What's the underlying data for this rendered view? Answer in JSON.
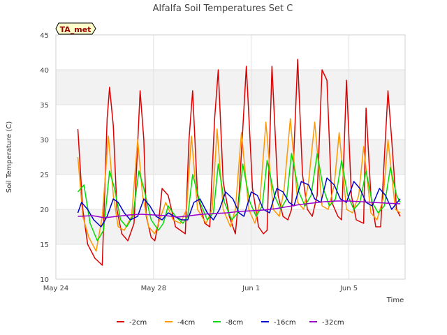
{
  "chart_data": {
    "type": "line",
    "title": "Alfalfa Soil Temperatures Set C",
    "xlabel": "Time",
    "ylabel": "Soil Temperature (C)",
    "ylim": [
      10,
      45
    ],
    "y_ticks": [
      10,
      15,
      20,
      25,
      30,
      35,
      40,
      45
    ],
    "x_ticks": [
      "May 24",
      "May 28",
      "Jun 1",
      "Jun 5"
    ],
    "x_range_days": [
      0,
      14.3
    ],
    "x_tick_days": [
      0,
      4,
      8,
      12
    ],
    "grid": true,
    "legend_position": "bottom",
    "badge": "TA_met",
    "series": [
      {
        "name": "-2cm",
        "color": "#dd0000",
        "x": [
          0.9,
          1.1,
          1.3,
          1.6,
          1.9,
          2.1,
          2.2,
          2.35,
          2.5,
          2.7,
          2.95,
          3.2,
          3.45,
          3.6,
          3.7,
          3.9,
          4.05,
          4.2,
          4.35,
          4.6,
          4.9,
          5.1,
          5.3,
          5.45,
          5.6,
          5.8,
          6.1,
          6.3,
          6.5,
          6.65,
          6.85,
          7.1,
          7.25,
          7.35,
          7.5,
          7.8,
          8.05,
          8.3,
          8.5,
          8.65,
          8.85,
          9.1,
          9.3,
          9.5,
          9.65,
          9.9,
          10.1,
          10.3,
          10.5,
          10.7,
          10.9,
          11.1,
          11.3,
          11.55,
          11.7,
          11.9,
          12.1,
          12.3,
          12.6,
          12.7,
          12.9,
          13.1,
          13.3,
          13.6,
          13.75,
          13.95,
          14.1
        ],
        "y": [
          31.5,
          20,
          15,
          13,
          12,
          33,
          37.5,
          32,
          20,
          16.5,
          15.5,
          18,
          37,
          30,
          19,
          16,
          15.5,
          18,
          23,
          22,
          17.5,
          17,
          16.5,
          30,
          37,
          22,
          18,
          17.5,
          33,
          40,
          24,
          19,
          17.5,
          16.5,
          22,
          40.5,
          23,
          17.5,
          16.5,
          17,
          40.5,
          22,
          19,
          18.5,
          20,
          41.5,
          25,
          20,
          19,
          22,
          40,
          38.5,
          21,
          19,
          18.5,
          38.5,
          22,
          18.5,
          18,
          34.5,
          22,
          17.5,
          17.5,
          37,
          30,
          20,
          19
        ]
      },
      {
        "name": "-4cm",
        "color": "#ff9900",
        "x": [
          0.9,
          1.1,
          1.35,
          1.65,
          1.9,
          2.15,
          2.35,
          2.55,
          2.8,
          3.1,
          3.35,
          3.55,
          3.8,
          4.05,
          4.3,
          4.5,
          4.8,
          5.1,
          5.35,
          5.55,
          5.8,
          6.15,
          6.4,
          6.6,
          6.85,
          7.15,
          7.35,
          7.6,
          7.9,
          8.15,
          8.35,
          8.6,
          8.9,
          9.15,
          9.35,
          9.6,
          9.9,
          10.15,
          10.35,
          10.6,
          10.9,
          11.15,
          11.4,
          11.6,
          11.9,
          12.15,
          12.4,
          12.6,
          12.9,
          13.15,
          13.4,
          13.6,
          13.9,
          14.1
        ],
        "y": [
          27.5,
          19,
          16,
          14,
          19,
          30.5,
          22,
          17.5,
          17,
          19,
          30,
          22,
          17.5,
          16.5,
          19,
          21,
          18.5,
          18,
          20,
          30.5,
          20,
          18,
          20,
          31.5,
          20,
          17.5,
          20,
          31,
          20,
          18,
          21,
          32.5,
          20,
          19,
          23,
          33,
          21,
          20,
          24,
          32.5,
          20.5,
          20,
          23.5,
          31,
          20,
          19.5,
          22,
          29,
          19.5,
          18.5,
          21.5,
          30,
          20,
          19.5
        ]
      },
      {
        "name": "-8cm",
        "color": "#00dd00",
        "x": [
          0.9,
          1.15,
          1.4,
          1.7,
          1.95,
          2.2,
          2.4,
          2.65,
          2.9,
          3.15,
          3.4,
          3.6,
          3.9,
          4.2,
          4.4,
          4.6,
          4.9,
          5.2,
          5.4,
          5.6,
          5.9,
          6.2,
          6.45,
          6.65,
          6.9,
          7.2,
          7.45,
          7.65,
          7.95,
          8.2,
          8.45,
          8.65,
          8.95,
          9.2,
          9.45,
          9.65,
          9.95,
          10.2,
          10.45,
          10.7,
          10.95,
          11.2,
          11.45,
          11.7,
          11.95,
          12.2,
          12.45,
          12.7,
          12.95,
          13.2,
          13.45,
          13.7,
          13.95,
          14.1
        ],
        "y": [
          22.5,
          23.5,
          18,
          15.5,
          17,
          25.5,
          23,
          18.5,
          17.5,
          19,
          25.5,
          23,
          18.5,
          17,
          18,
          20.5,
          19,
          18,
          19,
          25,
          21,
          18.5,
          19.5,
          26.5,
          21,
          18.5,
          19.5,
          26.5,
          21,
          19,
          20.5,
          27,
          22,
          20,
          21.5,
          28,
          22.5,
          20.5,
          22,
          28,
          23,
          20.5,
          21.5,
          27,
          22,
          20,
          21,
          25.5,
          21,
          19.5,
          20.5,
          26,
          22,
          21
        ]
      },
      {
        "name": "-16cm",
        "color": "#0000cc",
        "x": [
          0.9,
          1.05,
          1.3,
          1.55,
          1.85,
          2.1,
          2.35,
          2.55,
          2.8,
          3.05,
          3.35,
          3.6,
          3.85,
          4.1,
          4.35,
          4.6,
          4.85,
          5.15,
          5.4,
          5.65,
          5.9,
          6.2,
          6.45,
          6.7,
          6.95,
          7.25,
          7.5,
          7.7,
          8.0,
          8.25,
          8.5,
          8.75,
          9.05,
          9.3,
          9.55,
          9.75,
          10.05,
          10.35,
          10.6,
          10.85,
          11.1,
          11.4,
          11.65,
          11.9,
          12.2,
          12.45,
          12.7,
          12.95,
          13.25,
          13.5,
          13.75,
          14.1
        ],
        "y": [
          19.5,
          21,
          20,
          18.5,
          17.5,
          19,
          21.5,
          21,
          19.5,
          18.5,
          19,
          21.5,
          20.5,
          19,
          18.5,
          19.5,
          19,
          18.5,
          18.5,
          21,
          21.5,
          19.5,
          18.5,
          20,
          22.5,
          21.5,
          19.5,
          19,
          22.5,
          22,
          20,
          19.5,
          23,
          22.5,
          21,
          20.5,
          24,
          23.5,
          21.5,
          21,
          24.5,
          23.5,
          21.5,
          21,
          24,
          23,
          21,
          20.5,
          23,
          22,
          20,
          21.5
        ]
      },
      {
        "name": "-32cm",
        "color": "#9900cc",
        "x": [
          0.9,
          1.5,
          2.0,
          2.5,
          3.0,
          3.5,
          4.0,
          4.5,
          5.0,
          5.5,
          6.0,
          6.5,
          7.0,
          7.5,
          8.0,
          8.5,
          9.0,
          9.5,
          10.0,
          10.5,
          11.0,
          11.5,
          12.0,
          12.5,
          13.0,
          13.5,
          14.1
        ],
        "y": [
          19,
          19.1,
          18.8,
          19,
          19.2,
          19.3,
          19.2,
          19.1,
          18.9,
          19.1,
          19.3,
          19.4,
          19.5,
          19.7,
          19.8,
          19.9,
          20.1,
          20.4,
          20.7,
          20.9,
          21.1,
          21.2,
          21.2,
          21.1,
          21.0,
          20.9,
          20.8
        ]
      }
    ]
  }
}
